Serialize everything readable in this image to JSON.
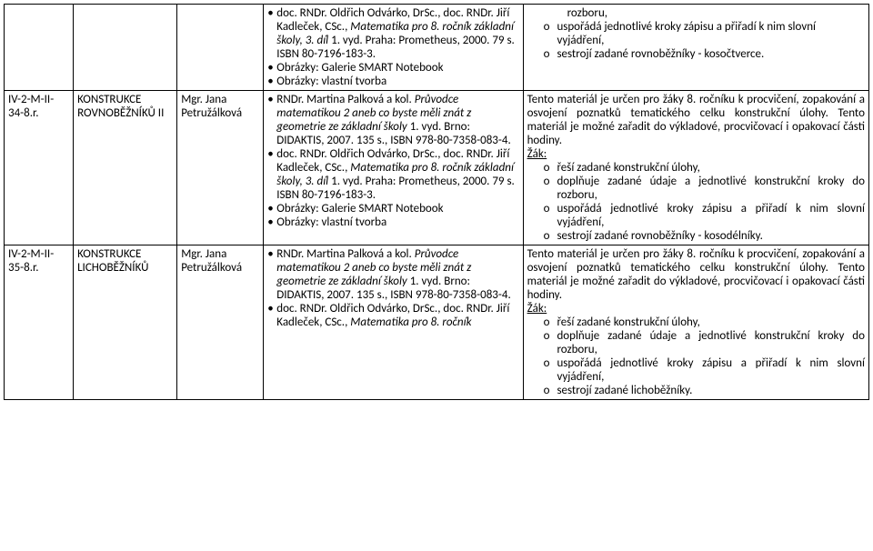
{
  "rows": [
    {
      "code": "",
      "topic": "",
      "author": "",
      "desc_bullets": [
        {
          "plain_pre": "doc. RNDr. Oldřich Odvárko, DrSc., doc. RNDr. Jiří Kadleček, CSc., ",
          "italic": "Matematika pro 8. ročník základní školy, 3. díl",
          "plain_post": " 1. vyd. Praha: Prometheus, 2000. 79 s. ISBN 80-7196-183-3."
        },
        {
          "plain_pre": "Obrázky: Galerie SMART Notebook",
          "italic": "",
          "plain_post": ""
        },
        {
          "plain_pre": "Obrázky: vlastní tvorba",
          "italic": "",
          "plain_post": ""
        }
      ],
      "notes_intro": "rozboru,",
      "notes_circles": [
        "uspořádá jednotlivé kroky zápisu a přiřadí k nim slovní vyjádření,",
        "sestrojí zadané rovnoběžníky - kosočtverce."
      ],
      "intro_as_circle_continuation": true
    },
    {
      "code": "IV-2-M-II-34-8.r.",
      "topic": "KONSTRUKCE ROVNOBĚŽNÍKŮ II",
      "author": "Mgr. Jana Petružálková",
      "desc_bullets": [
        {
          "plain_pre": "RNDr. Martina Palková a kol. ",
          "italic": "Průvodce matematikou 2 aneb co byste měli znát z geometrie ze základní školy",
          "plain_post": " 1. vyd. Brno: DIDAKTIS, 2007. 135 s., ISBN 978-80-7358-083-4."
        },
        {
          "plain_pre": "doc. RNDr. Oldřich Odvárko, DrSc., doc. RNDr. Jiří Kadleček, CSc., ",
          "italic": "Matematika pro 8. ročník základní školy, 3. díl",
          "plain_post": " 1. vyd. Praha: Prometheus, 2000. 79 s. ISBN 80-7196-183-3."
        },
        {
          "plain_pre": "Obrázky: Galerie SMART Notebook",
          "italic": "",
          "plain_post": ""
        },
        {
          "plain_pre": "Obrázky: vlastní tvorba",
          "italic": "",
          "plain_post": ""
        }
      ],
      "notes_intro": "Tento materiál je určen pro žáky 8. ročníku k procvičení, zopakování a osvojení poznatků tematického celku konstrukční úlohy. Tento materiál je možné zařadit do výkladové, procvičovací i opakovací části hodiny.",
      "notes_zak": "Žák:",
      "notes_circles": [
        "řeší zadané konstrukční úlohy,",
        "doplňuje zadané údaje a jednotlivé konstrukční kroky do rozboru,",
        "uspořádá jednotlivé kroky zápisu a přiřadí k nim slovní vyjádření,",
        "sestrojí zadané rovnoběžníky - kosodélníky."
      ]
    },
    {
      "code": "IV-2-M-II-35-8.r.",
      "topic": "KONSTRUKCE LICHOBĚŽNÍKŮ",
      "author": "Mgr. Jana Petružálková",
      "desc_bullets": [
        {
          "plain_pre": "RNDr. Martina Palková a kol. ",
          "italic": "Průvodce matematikou 2 aneb co byste měli znát z geometrie ze základní školy",
          "plain_post": " 1. vyd. Brno: DIDAKTIS, 2007. 135 s., ISBN 978-80-7358-083-4."
        },
        {
          "plain_pre": "doc. RNDr. Oldřich Odvárko, DrSc., doc. RNDr. Jiří Kadleček, CSc., ",
          "italic": "Matematika pro 8. ročník",
          "plain_post": ""
        }
      ],
      "notes_intro": "Tento materiál je určen pro žáky 8. ročníku k procvičení, zopakování a osvojení poznatků tematického celku konstrukční úlohy. Tento materiál je možné zařadit do výkladové, procvičovací i opakovací části hodiny.",
      "notes_zak": "Žák:",
      "notes_circles": [
        "řeší zadané konstrukční úlohy,",
        "doplňuje zadané údaje a jednotlivé konstrukční kroky do rozboru,",
        "uspořádá jednotlivé kroky zápisu a přiřadí k nim slovní vyjádření,",
        "sestrojí zadané lichoběžníky."
      ]
    }
  ],
  "circle_marker": "o"
}
